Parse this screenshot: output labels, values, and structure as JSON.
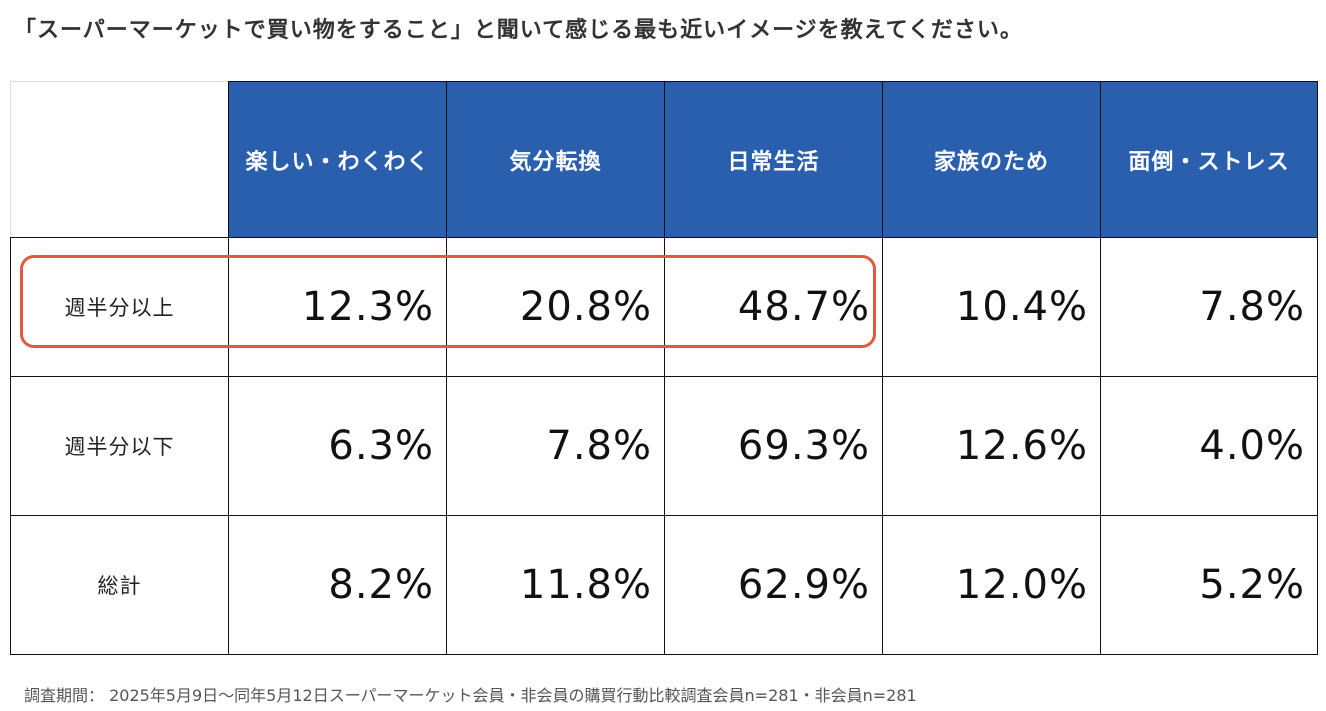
{
  "title": "「スーパーマーケットで買い物をすること」と聞いて感じる最も近いイメージを教えてください。",
  "footnote": "調査期間： 2025年5月9日〜同年5月12日スーパーマーケット会員・非会員の購買行動比較調査会員n=281・非会員n=281",
  "colors": {
    "header_bg": "#2a5fad",
    "header_text": "#ffffff",
    "highlight_border": "#e05a3c",
    "border": "#111111"
  },
  "chart_data": {
    "type": "table",
    "title": "「スーパーマーケットで買い物をすること」と聞いて感じる最も近いイメージを教えてください。",
    "columns": [
      "楽しい・わくわく",
      "気分転換",
      "日常生活",
      "家族のため",
      "面倒・ストレス"
    ],
    "rows": [
      {
        "label": "週半分以上",
        "values": [
          "12.3%",
          "20.8%",
          "48.7%",
          "10.4%",
          "7.8%"
        ],
        "highlighted": true
      },
      {
        "label": "週半分以下",
        "values": [
          "6.3%",
          "7.8%",
          "69.3%",
          "12.6%",
          "4.0%"
        ]
      },
      {
        "label": "総計",
        "values": [
          "8.2%",
          "11.8%",
          "62.9%",
          "12.0%",
          "5.2%"
        ]
      }
    ],
    "highlight": {
      "row": 0,
      "columns": [
        0,
        1,
        2
      ]
    }
  }
}
